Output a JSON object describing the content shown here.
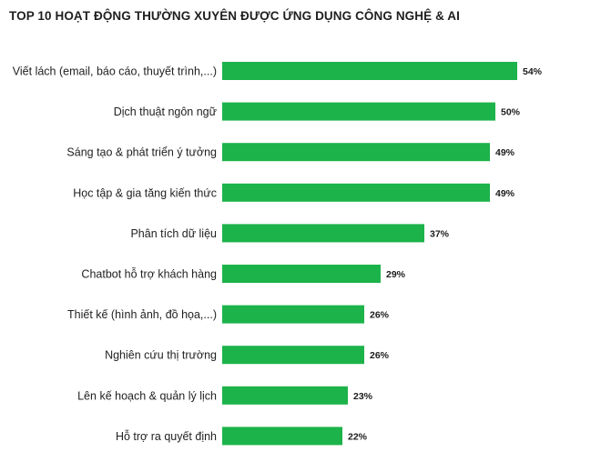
{
  "chart_data": {
    "type": "bar",
    "orientation": "horizontal",
    "title": "TOP 10 HOẠT ĐỘNG THƯỜNG XUYÊN ĐƯỢC ỨNG DỤNG CÔNG NGHỆ & AI",
    "categories": [
      "Viết lách (email, báo cáo, thuyết trình,...)",
      "Dịch thuật ngôn ngữ",
      "Sáng tạo & phát triển ý tưởng",
      "Học tập & gia tăng kiến thức",
      "Phân tích dữ liệu",
      "Chatbot hỗ trợ khách hàng",
      "Thiết kế (hình ảnh, đồ họa,...)",
      "Nghiên cứu thị trường",
      "Lên kế hoạch & quản lý lịch",
      "Hỗ trợ ra quyết định"
    ],
    "values": [
      54,
      50,
      49,
      49,
      37,
      29,
      26,
      26,
      23,
      22
    ],
    "value_labels": [
      "54%",
      "50%",
      "49%",
      "49%",
      "37%",
      "29%",
      "26%",
      "26%",
      "23%",
      "22%"
    ],
    "unit": "%",
    "xlim": [
      0,
      54
    ],
    "grid": false,
    "legend": "none",
    "bar_color": "#1cb34a"
  }
}
